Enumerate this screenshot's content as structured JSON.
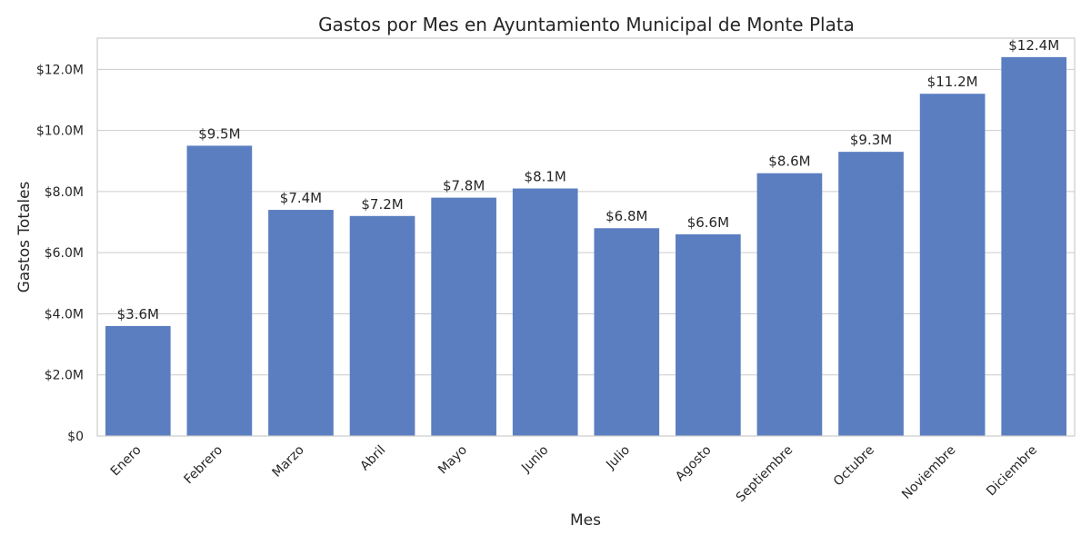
{
  "chart_data": {
    "type": "bar",
    "title": "Gastos por Mes en Ayuntamiento Municipal de Monte Plata",
    "xlabel": "Mes",
    "ylabel": "Gastos Totales",
    "categories": [
      "Enero",
      "Febrero",
      "Marzo",
      "Abril",
      "Mayo",
      "Junio",
      "Julio",
      "Agosto",
      "Septiembre",
      "Octubre",
      "Noviembre",
      "Diciembre"
    ],
    "values": [
      3.6,
      9.5,
      7.4,
      7.2,
      7.8,
      8.1,
      6.8,
      6.6,
      8.6,
      9.3,
      11.2,
      12.4
    ],
    "value_unit": "millones de $",
    "data_labels": [
      "$3.6M",
      "$9.5M",
      "$7.4M",
      "$7.2M",
      "$7.8M",
      "$8.1M",
      "$6.8M",
      "$6.6M",
      "$8.6M",
      "$9.3M",
      "$11.2M",
      "$12.4M"
    ],
    "yticks": [
      0,
      2,
      4,
      6,
      8,
      10,
      12
    ],
    "ytick_labels": [
      "$0",
      "$2.0M",
      "$4.0M",
      "$6.0M",
      "$8.0M",
      "$10.0M",
      "$12.0M"
    ],
    "ylim": [
      0,
      13.02
    ],
    "grid": true,
    "bar_color": "#5b7ec1"
  }
}
